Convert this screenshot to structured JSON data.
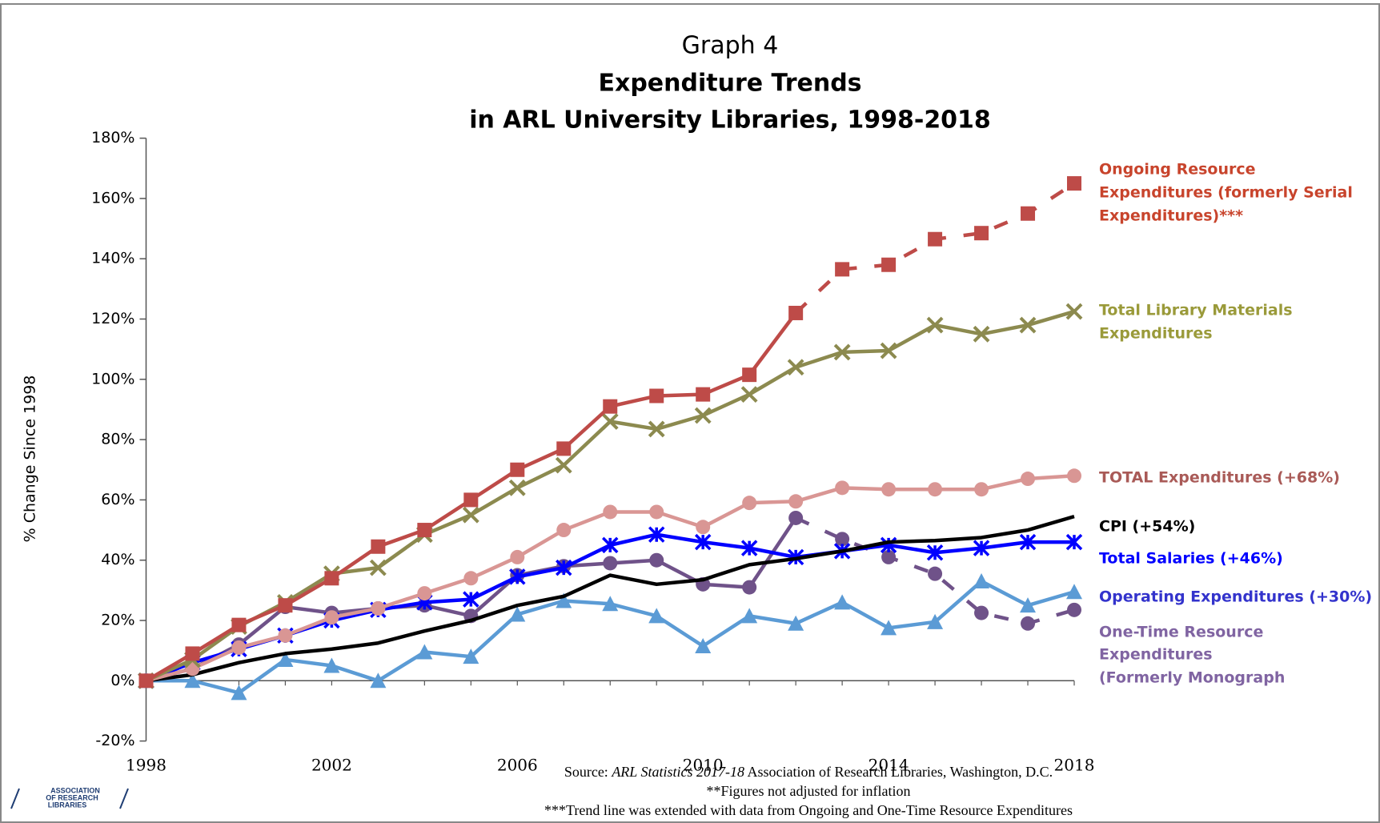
{
  "chart_data": {
    "type": "line",
    "title": [
      "Graph 4",
      "Expenditure Trends",
      "in ARL University Libraries, 1998-2018"
    ],
    "y_label": "% Change Since 1998",
    "x": [
      1998,
      1999,
      2000,
      2001,
      2002,
      2003,
      2004,
      2005,
      2006,
      2007,
      2008,
      2009,
      2010,
      2011,
      2012,
      2013,
      2014,
      2015,
      2016,
      2017,
      2018
    ],
    "xlim": [
      1998,
      2018
    ],
    "xticks": [
      1998,
      2002,
      2006,
      2010,
      2014,
      2018
    ],
    "ylim": [
      -20,
      180
    ],
    "yticks": [
      {
        "value": -20,
        "label": "-20%"
      },
      {
        "value": 0,
        "label": "0%"
      },
      {
        "value": 20,
        "label": "20%"
      },
      {
        "value": 40,
        "label": "40%"
      },
      {
        "value": 60,
        "label": "60%"
      },
      {
        "value": 80,
        "label": "80%"
      },
      {
        "value": 100,
        "label": "100%"
      },
      {
        "value": 120,
        "label": "120%"
      },
      {
        "value": 140,
        "label": "140%"
      },
      {
        "value": 160,
        "label": "160%"
      },
      {
        "value": 180,
        "label": "180%"
      }
    ],
    "series": [
      {
        "name": [
          "Ongoing Resource",
          "Expenditures (formerly Serial",
          "Expenditures)***"
        ],
        "color": "#be4b48",
        "label_color": "#c8442c",
        "marker": "square",
        "dashed_from_x": 2012,
        "values": [
          0,
          9,
          18.5,
          25,
          34,
          44.5,
          50,
          60,
          70,
          77,
          91,
          94.5,
          95,
          101.5,
          122,
          136.5,
          138,
          146.5,
          148.5,
          155,
          165
        ]
      },
      {
        "name": [
          "Total Library Materials",
          "Expenditures"
        ],
        "color": "#8c8a4f",
        "label_color": "#9a9a3a",
        "marker": "x",
        "values": [
          0,
          7,
          18,
          26,
          35.5,
          37.5,
          48.5,
          55,
          64,
          71.5,
          86,
          83.5,
          88,
          95,
          104,
          109,
          109.5,
          118,
          115,
          118,
          122.5
        ]
      },
      {
        "name": [
          "TOTAL Expenditures (+68%)"
        ],
        "color": "#d99694",
        "label_color": "#a95a57",
        "marker": "circle",
        "values": [
          0,
          4,
          11,
          15,
          21,
          24,
          29,
          34,
          41,
          50,
          56,
          56,
          51,
          59,
          59.5,
          64,
          63.5,
          63.5,
          63.5,
          67,
          68
        ]
      },
      {
        "name": [
          "CPI (+54%)"
        ],
        "color": "#000000",
        "label_color": "#000000",
        "marker": "none",
        "values": [
          0,
          2,
          6,
          9,
          10.5,
          12.5,
          16.5,
          20,
          25,
          28,
          35,
          32,
          33.5,
          38.5,
          40.5,
          43,
          46,
          46.5,
          47.5,
          50,
          54.5
        ]
      },
      {
        "name": [
          "Total Salaries (+46%)"
        ],
        "color": "#0000ff",
        "label_color": "#0000ff",
        "marker": "asterisk",
        "values": [
          0,
          6,
          10.5,
          15,
          20,
          23.5,
          26,
          27,
          34.5,
          37.5,
          45,
          48.5,
          46,
          44,
          41,
          43,
          45,
          42.5,
          44,
          46,
          46
        ]
      },
      {
        "name": [
          "Operating Expenditures (+30%)"
        ],
        "color": "#5b9bd5",
        "label_color": "#3333cc",
        "marker": "triangle",
        "values": [
          0,
          0,
          -4,
          7,
          5,
          0,
          9.5,
          8,
          22,
          26.5,
          25.5,
          21.5,
          11.5,
          21.5,
          19,
          26,
          17.5,
          19.5,
          33,
          25,
          29.5
        ]
      },
      {
        "name": [
          "One-Time Resource",
          "Expenditures",
          "(Formerly Monograph"
        ],
        "color": "#6f5289",
        "label_color": "#8064a2",
        "marker": "circle",
        "dashed_from_x": 2012,
        "values": [
          0,
          4,
          12,
          24.5,
          22.5,
          24,
          25,
          21.5,
          35,
          38,
          39,
          40,
          32,
          31,
          54,
          47,
          41,
          35.5,
          22.5,
          19,
          23.5
        ]
      }
    ],
    "source": [
      "Source: ",
      "ARL Statistics 2017-18",
      " Association of Research Libraries, Washington, D.C."
    ],
    "notes": [
      "**Figures not adjusted for inflation",
      "***Trend line was extended with data from Ongoing and One-Time Resource Expenditures"
    ],
    "logo": [
      "ASSOCIATION",
      "OF RESEARCH",
      "LIBRARIES"
    ]
  }
}
